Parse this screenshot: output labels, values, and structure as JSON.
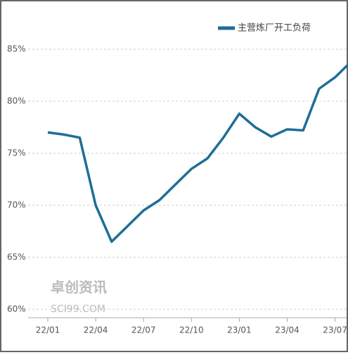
{
  "chart_data": {
    "type": "line",
    "legend_position": "top-right",
    "grid": true,
    "categories": [
      "22/01",
      null,
      null,
      "22/04",
      null,
      null,
      "22/07",
      null,
      null,
      "22/10",
      null,
      null,
      "23/01",
      null,
      null,
      "23/04",
      null,
      null,
      "23/07",
      null
    ],
    "series": [
      {
        "name": "主营炼厂开工负荷",
        "color": "#1f6e96",
        "values": [
          77.0,
          76.8,
          76.5,
          70.0,
          66.5,
          68.0,
          69.5,
          70.5,
          72.0,
          73.5,
          74.5,
          76.5,
          78.8,
          77.5,
          76.6,
          77.3,
          77.2,
          81.2,
          82.3,
          83.8
        ]
      }
    ],
    "ylim": [
      60,
      85
    ],
    "yticks": [
      {
        "value": 60,
        "label": "60%"
      },
      {
        "value": 65,
        "label": "65%"
      },
      {
        "value": 70,
        "label": "70%"
      },
      {
        "value": 75,
        "label": "75%"
      },
      {
        "value": 80,
        "label": "80%"
      },
      {
        "value": 85,
        "label": "85%"
      }
    ],
    "annotations": [
      "卓创资讯",
      "SCI99.COM"
    ]
  }
}
